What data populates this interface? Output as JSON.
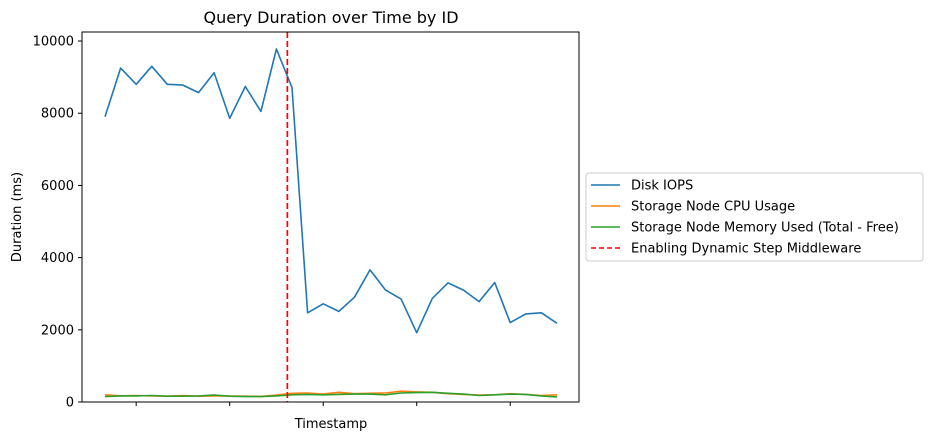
{
  "chart_data": {
    "type": "line",
    "title": "Query Duration over Time by ID",
    "xlabel": "Timestamp",
    "ylabel": "Duration (ms)",
    "x_tick_labels": [],
    "y_ticks": [
      0,
      2000,
      4000,
      6000,
      8000,
      10000
    ],
    "y_tick_labels": [
      "0",
      "2000",
      "4000",
      "6000",
      "8000",
      "10000"
    ],
    "ylim": [
      0,
      10250
    ],
    "grid": false,
    "legend_position": "outside-right",
    "x": [
      1,
      2,
      3,
      4,
      5,
      6,
      7,
      8,
      9,
      10,
      11,
      12,
      13,
      14,
      15,
      16,
      17,
      18,
      19,
      20,
      21,
      22,
      23,
      24,
      25,
      26,
      27,
      28,
      29,
      30
    ],
    "series": [
      {
        "name": "Disk IOPS",
        "color": "#1f77b4",
        "style": "solid",
        "values": [
          7900,
          9250,
          8800,
          9300,
          8800,
          8780,
          8570,
          9120,
          7860,
          8740,
          8050,
          9780,
          8710,
          2470,
          2720,
          2510,
          2900,
          3660,
          3100,
          2850,
          1920,
          2870,
          3300,
          3100,
          2780,
          3310,
          2200,
          2440,
          2470,
          2180
        ]
      },
      {
        "name": "Storage Node CPU Usage",
        "color": "#ff7f0e",
        "style": "solid",
        "values": [
          200,
          170,
          180,
          170,
          160,
          180,
          160,
          170,
          165,
          160,
          155,
          190,
          240,
          250,
          220,
          270,
          230,
          240,
          250,
          300,
          280,
          270,
          230,
          210,
          190,
          200,
          230,
          210,
          180,
          200
        ]
      },
      {
        "name": "Storage Node Memory Used (Total - Free)",
        "color": "#2ca02c",
        "style": "solid",
        "values": [
          150,
          170,
          170,
          180,
          160,
          160,
          170,
          190,
          160,
          150,
          150,
          170,
          200,
          210,
          200,
          210,
          220,
          220,
          200,
          250,
          260,
          270,
          240,
          220,
          180,
          200,
          220,
          210,
          170,
          140
        ]
      }
    ],
    "markers": [
      {
        "name": "Enabling Dynamic Step Middleware",
        "color": "#ff0000",
        "style": "dashed",
        "at_x": 12.7
      }
    ]
  }
}
